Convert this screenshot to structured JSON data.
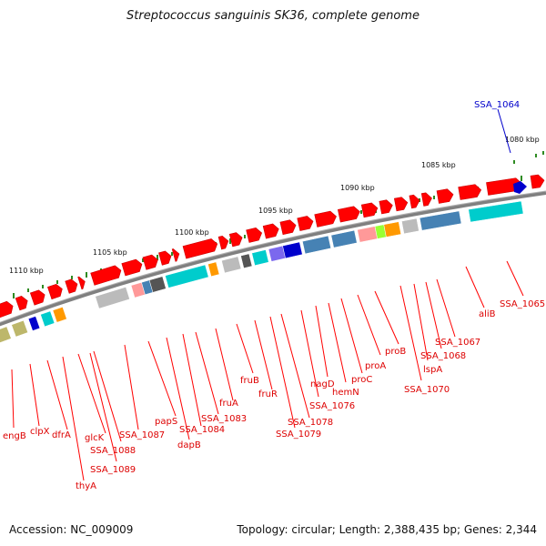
{
  "title": "Streptococcus sanguinis SK36, complete genome",
  "footer": {
    "accession": "Accession: NC_009009",
    "topology": "Topology: circular; Length: 2,388,435 bp; Genes: 2,344"
  },
  "scale_labels": [
    "1080 kbp",
    "1085 kbp",
    "1090 kbp",
    "1095 kbp",
    "1100 kbp",
    "1105 kbp",
    "1110 kbp"
  ],
  "colors": {
    "forward_gene": "#ff0000",
    "highlight_gene": "#0000cc",
    "backbone": "#808080",
    "tick": "#2e8b22",
    "cog_cyan": "#00cccc",
    "cog_steel": "#4682b4",
    "cog_pink": "#ff9999",
    "cog_grey": "#bbbbbb",
    "cog_dark": "#555555",
    "cog_purple": "#7b68ee",
    "cog_orange": "#ff9900",
    "cog_olive": "#bdb76b",
    "cog_lime": "#99ff33"
  },
  "gene_labels": {
    "top": [
      "SSA_1064"
    ],
    "right": [
      "SSA_1065",
      "aliB",
      "SSA_1067",
      "SSA_1068",
      "lspA",
      "SSA_1070",
      "proB",
      "proA",
      "proC",
      "hemN",
      "nagD",
      "SSA_1076",
      "SSA_1078",
      "SSA_1079",
      "fruR",
      "fruB",
      "fruA",
      "SSA_1083",
      "SSA_1084",
      "dapB",
      "papS",
      "SSA_1087",
      "SSA_1088",
      "SSA_1089",
      "glcK",
      "thyA",
      "dfrA",
      "clpX",
      "engB"
    ]
  }
}
